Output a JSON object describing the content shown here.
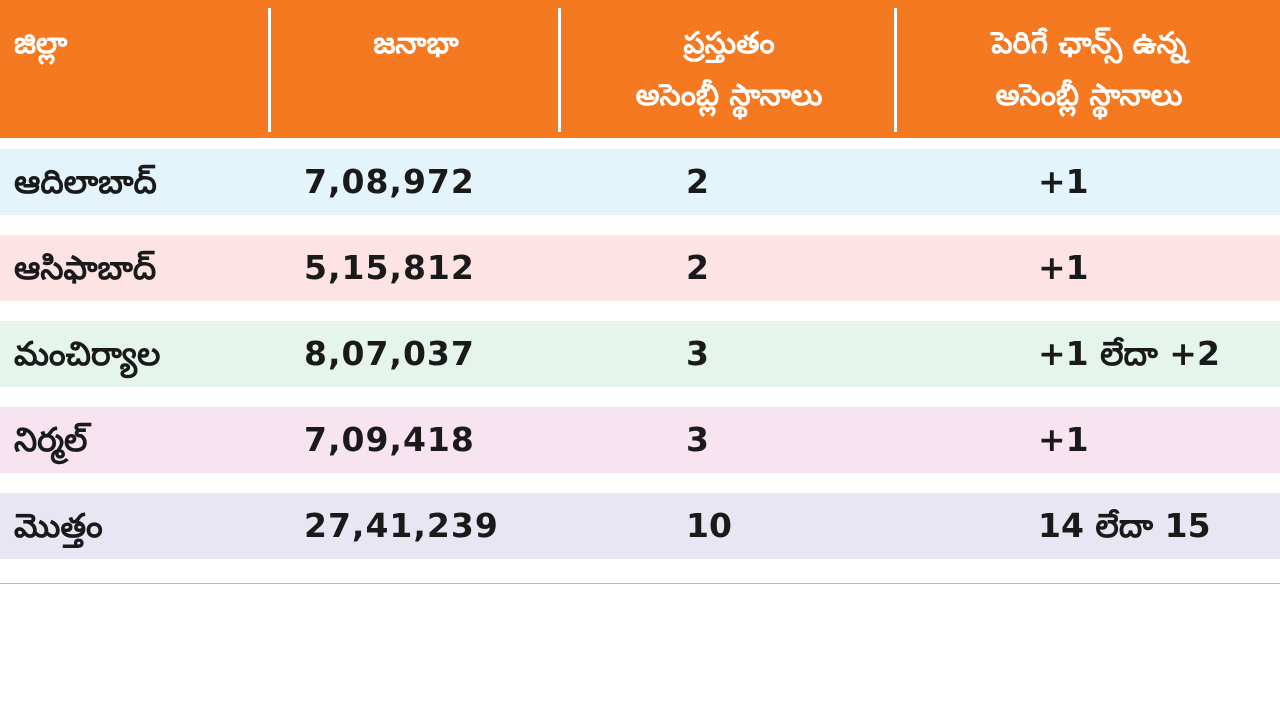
{
  "header": {
    "col1": "జిల్లా",
    "col2": "జనాభా",
    "col3_line1": "ప్రస్తుతం",
    "col3_line2": "అసెంబ్లీ స్థానాలు",
    "col4_line1": "పెరిగే ఛాన్స్‌ ఉన్న",
    "col4_line2": "అసెంబ్లీ స్థానాలు"
  },
  "colors": {
    "header_bg": "#f47920",
    "row_colors": [
      "#e3f4fb",
      "#fde3e4",
      "#e5f5ec",
      "#f8e4f0",
      "#e8e6f2"
    ]
  },
  "rows": [
    {
      "district": "ఆదిలాబాద్‌",
      "population": "7,08,972",
      "current": "2",
      "increase": "+1"
    },
    {
      "district": "ఆసిఫాబాద్‌",
      "population": "5,15,812",
      "current": "2",
      "increase": "+1"
    },
    {
      "district": "మంచిర్యాల",
      "population": "8,07,037",
      "current": "3",
      "increase": "+1 లేదా +2"
    },
    {
      "district": "నిర్మల్‌",
      "population": "7,09,418",
      "current": "3",
      "increase": "+1"
    },
    {
      "district": "మొత్తం",
      "population": "27,41,239",
      "current": "10",
      "increase": "14 లేదా 15"
    }
  ]
}
